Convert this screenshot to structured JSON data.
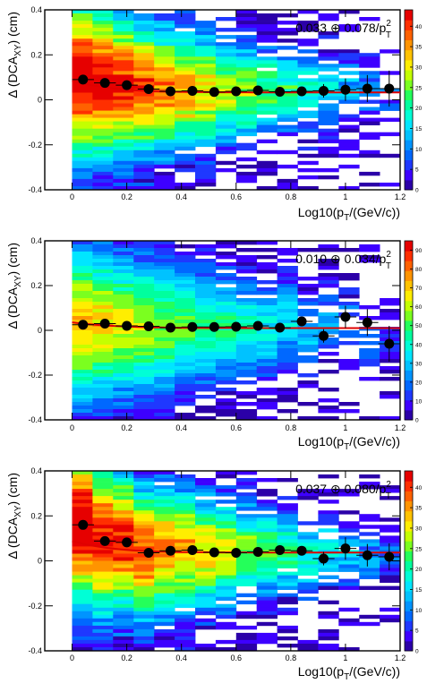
{
  "chart_data": [
    {
      "type": "heatmap",
      "fit_label": "0.033 ⊕ 0.078/p",
      "fit_label_sup": "2",
      "fit_label_sub": "T",
      "ylabel_main": "Δ (DCA",
      "ylabel_sub": "XY",
      "ylabel_end": ") (cm)",
      "xlabel_main": "Log10(p",
      "xlabel_sub": "T",
      "xlabel_end": "/(GeV/c))",
      "xlim": [
        -0.1,
        1.2
      ],
      "ylim": [
        -0.4,
        0.4
      ],
      "xticks": [
        "0",
        "0.2",
        "0.4",
        "0.6",
        "0.8",
        "1",
        "1.2"
      ],
      "yticks": [
        "-0.4",
        "-0.2",
        "0",
        "0.2",
        "0.4"
      ],
      "colorbar_ticks": [
        "0",
        "5",
        "10",
        "15",
        "20",
        "25",
        "30",
        "35",
        "40"
      ],
      "colorbar_max": 44,
      "points": {
        "x": [
          0.04,
          0.12,
          0.2,
          0.28,
          0.36,
          0.44,
          0.52,
          0.6,
          0.68,
          0.76,
          0.84,
          0.92,
          1.0,
          1.08,
          1.16
        ],
        "y": [
          0.09,
          0.075,
          0.065,
          0.048,
          0.038,
          0.04,
          0.035,
          0.038,
          0.042,
          0.036,
          0.038,
          0.04,
          0.045,
          0.05,
          0.05
        ],
        "err": [
          0.005,
          0.005,
          0.005,
          0.005,
          0.005,
          0.005,
          0.006,
          0.008,
          0.01,
          0.015,
          0.02,
          0.03,
          0.05,
          0.06,
          0.08
        ]
      },
      "fit_c": 0.033,
      "fit_b": 0.078,
      "fit_x_range": [
        0.0,
        1.2
      ]
    },
    {
      "type": "heatmap",
      "fit_label": "0.010 ⊕ 0.034/p",
      "fit_label_sup": "2",
      "fit_label_sub": "T",
      "ylabel_main": "Δ (DCA",
      "ylabel_sub": "XY",
      "ylabel_end": ") (cm)",
      "xlabel_main": "Log10(p",
      "xlabel_sub": "T",
      "xlabel_end": "/(GeV/c))",
      "xlim": [
        -0.1,
        1.2
      ],
      "ylim": [
        -0.4,
        0.4
      ],
      "xticks": [
        "0",
        "0.2",
        "0.4",
        "0.6",
        "0.8",
        "1",
        "1.2"
      ],
      "yticks": [
        "-0.4",
        "-0.2",
        "0",
        "0.2",
        "0.4"
      ],
      "colorbar_ticks": [
        "0",
        "10",
        "20",
        "30",
        "40",
        "50",
        "60",
        "70",
        "80",
        "90"
      ],
      "colorbar_max": 95,
      "points": {
        "x": [
          0.04,
          0.12,
          0.2,
          0.28,
          0.36,
          0.44,
          0.52,
          0.6,
          0.68,
          0.76,
          0.84,
          0.92,
          1.0,
          1.08,
          1.16
        ],
        "y": [
          0.025,
          0.03,
          0.02,
          0.018,
          0.012,
          0.015,
          0.015,
          0.016,
          0.02,
          0.012,
          0.04,
          -0.025,
          0.06,
          0.035,
          -0.06
        ],
        "err": [
          0.005,
          0.005,
          0.005,
          0.005,
          0.005,
          0.005,
          0.006,
          0.008,
          0.01,
          0.012,
          0.02,
          0.03,
          0.05,
          0.06,
          0.08
        ]
      },
      "fit_c": 0.01,
      "fit_b": 0.034,
      "fit_x_range": [
        0.0,
        1.2
      ]
    },
    {
      "type": "heatmap",
      "fit_label": "0.037 ⊕ 0.080/p",
      "fit_label_sup": "2",
      "fit_label_sub": "T",
      "ylabel_main": "Δ (DCA",
      "ylabel_sub": "XY",
      "ylabel_end": ") (cm)",
      "xlabel_main": "Log10(p",
      "xlabel_sub": "T",
      "xlabel_end": "/(GeV/c))",
      "xlim": [
        -0.1,
        1.2
      ],
      "ylim": [
        -0.4,
        0.4
      ],
      "xticks": [
        "0",
        "0.2",
        "0.4",
        "0.6",
        "0.8",
        "1",
        "1.2"
      ],
      "yticks": [
        "-0.4",
        "-0.2",
        "0",
        "0.2",
        "0.4"
      ],
      "colorbar_ticks": [
        "0",
        "5",
        "10",
        "15",
        "20",
        "25",
        "30",
        "35",
        "40"
      ],
      "colorbar_max": 44,
      "points": {
        "x": [
          0.04,
          0.12,
          0.2,
          0.28,
          0.36,
          0.44,
          0.52,
          0.6,
          0.68,
          0.76,
          0.84,
          0.92,
          1.0,
          1.08,
          1.16
        ],
        "y": [
          0.16,
          0.088,
          0.082,
          0.036,
          0.045,
          0.048,
          0.038,
          0.036,
          0.04,
          0.048,
          0.045,
          0.01,
          0.055,
          0.025,
          0.018
        ],
        "err": [
          0.01,
          0.006,
          0.006,
          0.005,
          0.005,
          0.005,
          0.006,
          0.008,
          0.01,
          0.012,
          0.02,
          0.03,
          0.05,
          0.05,
          0.06
        ]
      },
      "fit_c": 0.037,
      "fit_b": 0.08,
      "fit_x_range": [
        0.0,
        1.2
      ]
    }
  ]
}
